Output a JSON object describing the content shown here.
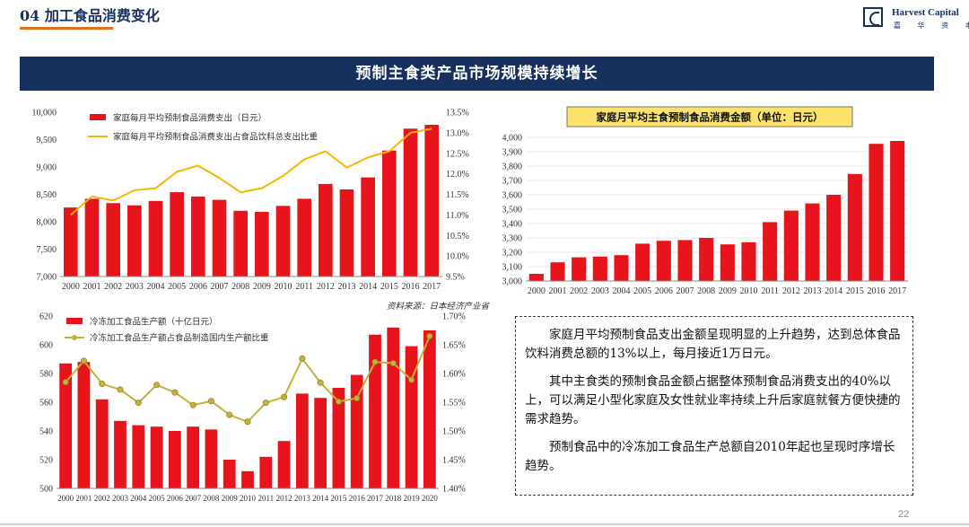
{
  "header": {
    "title": "04 加工食品消费变化"
  },
  "logo": {
    "name_en": "Harvest Capital",
    "name_cn": "嘉 华 资 本"
  },
  "banner": {
    "title": "预制主食类产品市场规模持续增长"
  },
  "source": "资料来源：日本经济产业省",
  "text_paragraphs": [
    "家庭月平均预制食品支出金额呈现明显的上升趋势，达到总体食品饮料消费总额的13%以上，每月接近1万日元。",
    "其中主食类的预制食品金额占据整体预制食品消费支出的40%以上，可以满足小型化家庭及女性就业率持续上升后家庭就餐方便快捷的需求趋势。",
    "预制食品中的冷冻加工食品生产总额自2010年起也呈现时序增长趋势。"
  ],
  "page_number": "22",
  "colors": {
    "navy": "#17305e",
    "bar": "#e8141b",
    "line1": "#f5b800",
    "line3": "#c3b23a",
    "orange": "#e3721d",
    "title_bg": "#fde36c"
  },
  "chart_data": [
    {
      "type": "bar+line",
      "title": "",
      "categories": [
        "2000",
        "2001",
        "2002",
        "2003",
        "2004",
        "2005",
        "2006",
        "2007",
        "2008",
        "2009",
        "2010",
        "2011",
        "2012",
        "2013",
        "2014",
        "2015",
        "2016",
        "2017"
      ],
      "series": [
        {
          "name": "家庭每月平均预制食品消费支出（日元）",
          "type": "bar",
          "axis": "left",
          "values": [
            8260,
            8420,
            8340,
            8300,
            8380,
            8540,
            8460,
            8400,
            8200,
            8180,
            8290,
            8420,
            8690,
            8590,
            8810,
            9300,
            9700,
            9770
          ]
        },
        {
          "name": "家庭每月平均预制食品消费支出占食品饮料总支出比重",
          "type": "line",
          "axis": "right",
          "values": [
            11.0,
            11.45,
            11.35,
            11.6,
            11.65,
            12.05,
            12.2,
            11.9,
            11.55,
            11.65,
            11.95,
            12.35,
            12.55,
            12.15,
            12.4,
            12.55,
            13.0,
            13.1
          ]
        }
      ],
      "ylim": [
        7000,
        10000
      ],
      "yticks": [
        "7,000",
        "7,500",
        "8,000",
        "8,500",
        "9,000",
        "9,500",
        "10,000"
      ],
      "ylim_right": [
        9.5,
        13.5
      ],
      "yticks_right": [
        "9.5%",
        "10.0%",
        "10.5%",
        "11.0%",
        "11.5%",
        "12.0%",
        "12.5%",
        "13.0%",
        "13.5%"
      ]
    },
    {
      "type": "bar",
      "title": "家庭月平均主食预制食品消费金额（单位：日元）",
      "categories": [
        "2000",
        "2001",
        "2002",
        "2003",
        "2004",
        "2005",
        "2006",
        "2007",
        "2008",
        "2009",
        "2010",
        "2011",
        "2012",
        "2013",
        "2014",
        "2015",
        "2016",
        "2017"
      ],
      "series": [
        {
          "name": "家庭月平均主食预制食品消费金额",
          "type": "bar",
          "axis": "left",
          "values": [
            3050,
            3130,
            3165,
            3170,
            3180,
            3260,
            3280,
            3285,
            3300,
            3255,
            3270,
            3410,
            3490,
            3540,
            3600,
            3745,
            3955,
            3975
          ]
        }
      ],
      "ylim": [
        3000,
        4000
      ],
      "yticks": [
        "3,000",
        "3,100",
        "3,200",
        "3,300",
        "3,400",
        "3,500",
        "3,600",
        "3,700",
        "3,800",
        "3,900",
        "4,000"
      ]
    },
    {
      "type": "bar+line",
      "title": "",
      "categories": [
        "2000",
        "2001",
        "2002",
        "2003",
        "2004",
        "2005",
        "2006",
        "2007",
        "2008",
        "2009",
        "2010",
        "2011",
        "2012",
        "2013",
        "2014",
        "2015",
        "2016",
        "2017",
        "2018",
        "2019",
        "2020"
      ],
      "series": [
        {
          "name": "冷冻加工食品生产额（十亿日元）",
          "type": "bar",
          "axis": "left",
          "values": [
            587,
            588,
            562,
            547,
            544,
            543,
            540,
            543,
            541,
            520,
            512,
            522,
            533,
            566,
            563,
            570,
            579,
            607,
            612,
            599,
            610
          ]
        },
        {
          "name": "冷冻加工食品生产额占食品制造国内生产额比重",
          "type": "line",
          "axis": "right",
          "values": [
            1.585,
            1.622,
            1.582,
            1.572,
            1.549,
            1.58,
            1.567,
            1.545,
            1.552,
            1.528,
            1.516,
            1.549,
            1.559,
            1.626,
            1.584,
            1.551,
            1.557,
            1.62,
            1.618,
            1.589,
            1.665
          ]
        }
      ],
      "ylim": [
        500,
        620
      ],
      "yticks": [
        "500",
        "520",
        "540",
        "560",
        "580",
        "600",
        "620"
      ],
      "ylim_right": [
        1.4,
        1.7
      ],
      "yticks_right": [
        "1.40%",
        "1.45%",
        "1.50%",
        "1.55%",
        "1.60%",
        "1.65%",
        "1.70%"
      ]
    }
  ]
}
